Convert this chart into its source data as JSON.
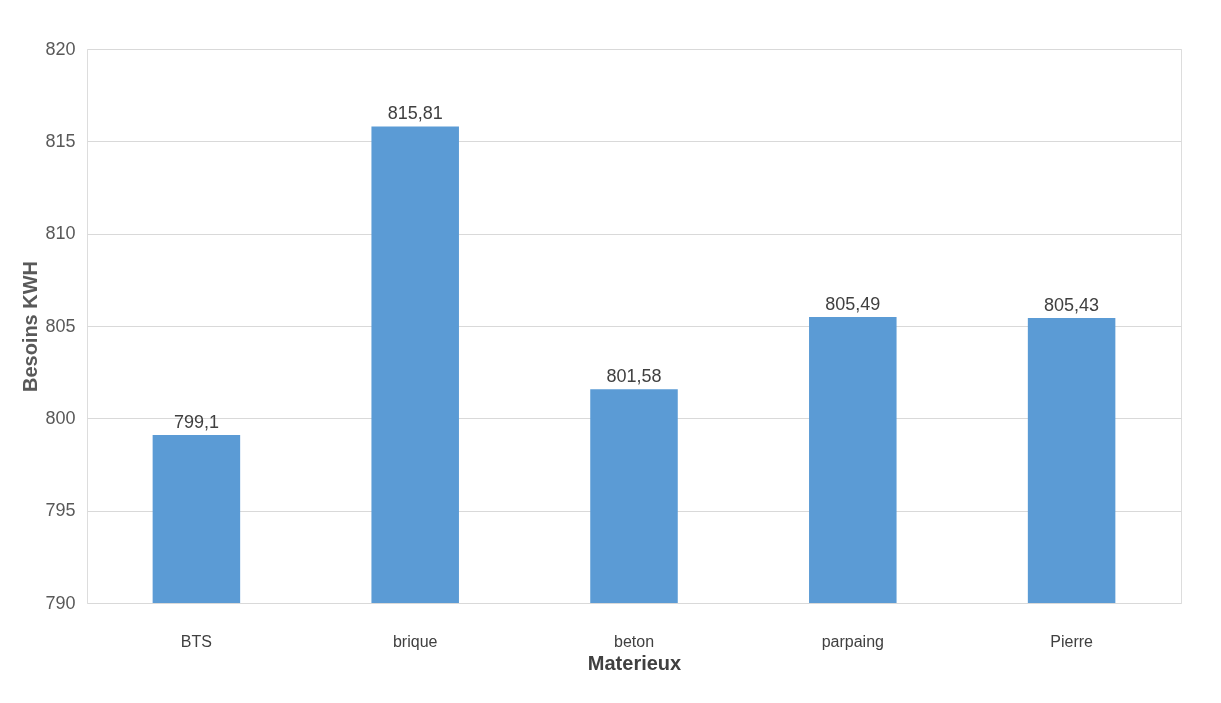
{
  "chart_data": {
    "type": "bar",
    "xlabel": "Materieux",
    "ylabel": "Besoins KWH",
    "categories": [
      "BTS",
      "brique",
      "beton",
      "parpaing",
      "Pierre"
    ],
    "values": [
      799.1,
      815.81,
      801.58,
      805.49,
      805.43
    ],
    "value_labels": [
      "799,1",
      "815,81",
      "801,58",
      "805,49",
      "805,43"
    ],
    "color": "#5b9bd5",
    "ylim": [
      790,
      820
    ],
    "yticks": [
      790,
      795,
      800,
      805,
      810,
      815,
      820
    ],
    "grid": "y"
  }
}
